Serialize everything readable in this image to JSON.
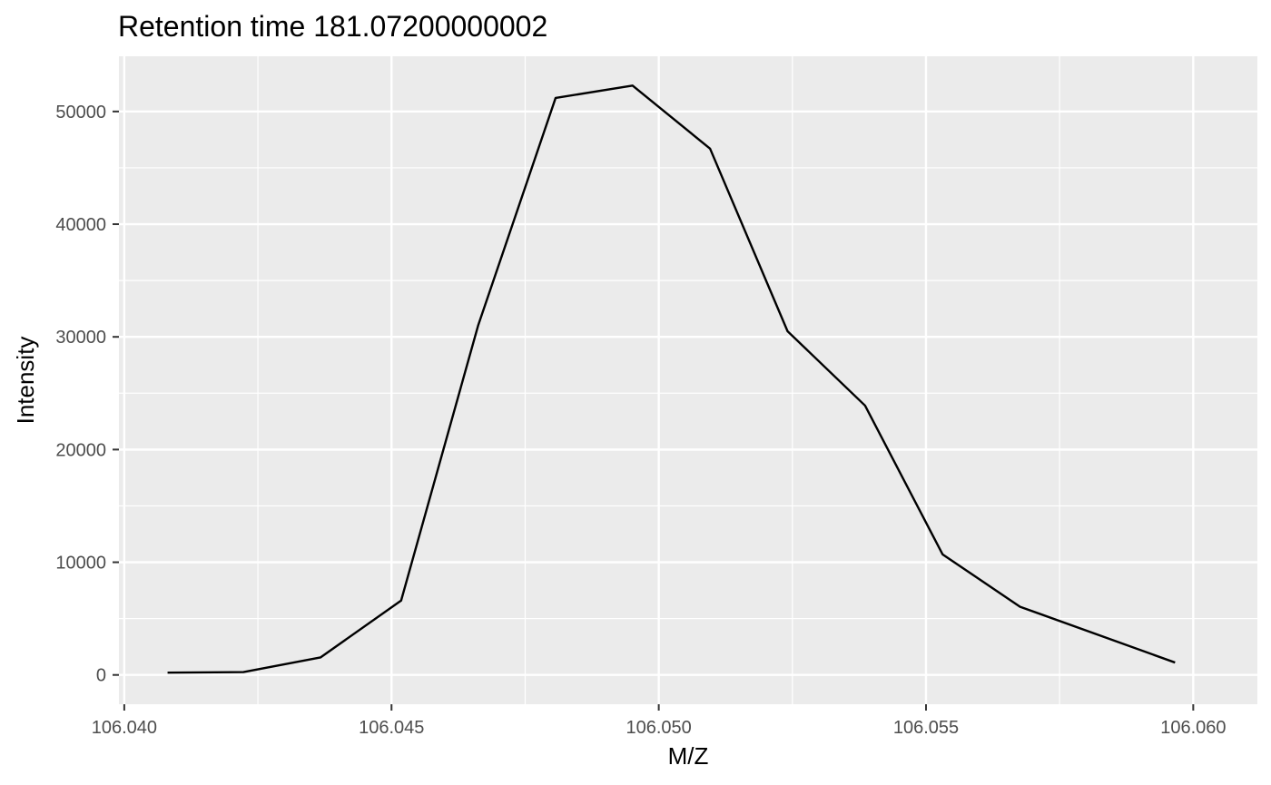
{
  "chart_data": {
    "type": "line",
    "title": "Retention time 181.07200000002",
    "xlabel": "M/Z",
    "ylabel": "Intensity",
    "xlim": [
      106.0399,
      106.0612
    ],
    "ylim": [
      -2600,
      54900
    ],
    "x_ticks": [
      106.04,
      106.045,
      106.05,
      106.055,
      106.06
    ],
    "x_tick_labels": [
      "106.040",
      "106.045",
      "106.050",
      "106.055",
      "106.060"
    ],
    "y_ticks": [
      0,
      10000,
      20000,
      30000,
      40000,
      50000
    ],
    "y_tick_labels": [
      "0",
      "10000",
      "20000",
      "30000",
      "40000",
      "50000"
    ],
    "grid": true,
    "panel_background": "#ebebeb",
    "grid_color": "#ffffff",
    "line_color": "#000000",
    "series": [
      {
        "x": [
          106.04081,
          106.04223,
          106.04367,
          106.04518,
          106.04662,
          106.04807,
          106.04951,
          106.05096,
          106.05241,
          106.05386,
          106.05531,
          106.05676,
          106.05966
        ],
        "y": [
          200,
          250,
          1550,
          6600,
          31000,
          51200,
          52300,
          46700,
          30500,
          23900,
          10700,
          6050,
          1100
        ]
      }
    ]
  }
}
